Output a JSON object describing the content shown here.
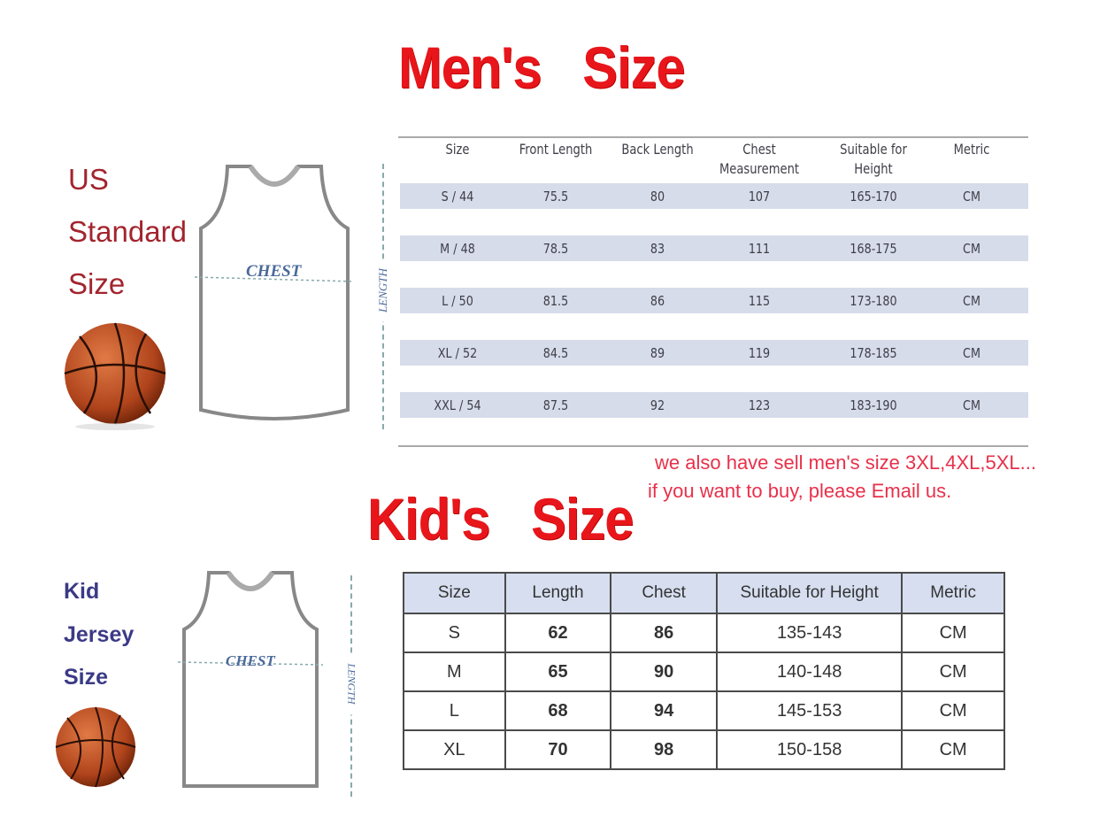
{
  "mens": {
    "title": "Men's   Size",
    "side_label": [
      "US",
      "Standard",
      "Size"
    ],
    "jersey_chest_label": "CHEST",
    "jersey_length_label": "LENGTH",
    "headers": [
      "Size",
      "Front Length",
      "Back Length",
      "Chest Measurement",
      "Suitable for Height",
      "Metric"
    ],
    "rows": [
      [
        "S / 44",
        "75.5",
        "80",
        "107",
        "165-170",
        "CM"
      ],
      [
        "M / 48",
        "78.5",
        "83",
        "111",
        "168-175",
        "CM"
      ],
      [
        "L / 50",
        "81.5",
        "86",
        "115",
        "173-180",
        "CM"
      ],
      [
        "XL / 52",
        "84.5",
        "89",
        "119",
        "178-185",
        "CM"
      ],
      [
        "XXL / 54",
        "87.5",
        "92",
        "123",
        "183-190",
        "CM"
      ]
    ],
    "note_line1": "we also have sell men's size 3XL,4XL,5XL...",
    "note_line2": "if you want to buy, please Email us."
  },
  "kids": {
    "title": "Kid's   Size",
    "side_label": [
      "Kid",
      "Jersey",
      "Size"
    ],
    "jersey_chest_label": "CHEST",
    "jersey_length_label": "LENGTH",
    "headers": [
      "Size",
      "Length",
      "Chest",
      "Suitable for Height",
      "Metric"
    ],
    "rows": [
      [
        "S",
        "62",
        "86",
        "135-143",
        "CM"
      ],
      [
        "M",
        "65",
        "90",
        "140-148",
        "CM"
      ],
      [
        "L",
        "68",
        "94",
        "145-153",
        "CM"
      ],
      [
        "XL",
        "70",
        "98",
        "150-158",
        "CM"
      ]
    ]
  },
  "colors": {
    "title_red": "#e8161b",
    "us_label": "#a3242e",
    "kid_label": "#3b3a86",
    "band": "#d7dcea",
    "note": "#e8304a"
  }
}
